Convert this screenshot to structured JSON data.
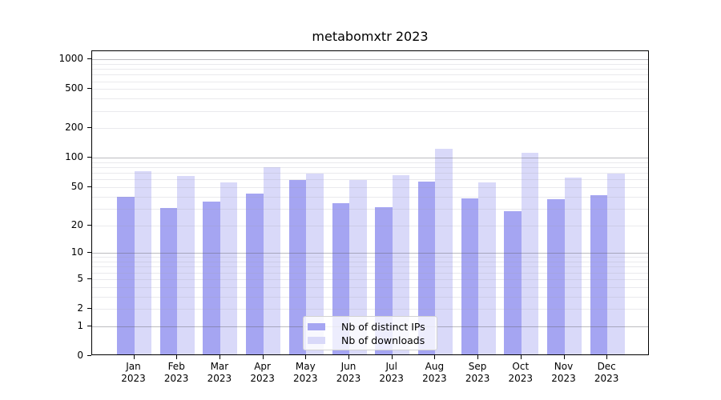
{
  "chart_data": {
    "type": "bar",
    "title": "metabomxtr 2023",
    "categories": [
      "Jan 2023",
      "Feb 2023",
      "Mar 2023",
      "Apr 2023",
      "May 2023",
      "Jun 2023",
      "Jul 2023",
      "Aug 2023",
      "Sep 2023",
      "Oct 2023",
      "Nov 2023",
      "Dec 2023"
    ],
    "series": [
      {
        "name": "Nb of distinct IPs",
        "color": "#a5a5f2",
        "values": [
          38,
          29,
          34,
          41,
          57,
          33,
          30,
          55,
          37,
          27,
          36,
          40
        ]
      },
      {
        "name": "Nb of downloads",
        "color": "#d9d9f9",
        "values": [
          70,
          63,
          54,
          77,
          66,
          57,
          64,
          120,
          54,
          109,
          60,
          66
        ]
      }
    ],
    "y_axis": {
      "scale": "log1p",
      "ticks": [
        0,
        1,
        2,
        5,
        10,
        20,
        50,
        100,
        200,
        500,
        1000
      ],
      "ylim": [
        0,
        1200
      ]
    },
    "xlabel": "",
    "ylabel": "",
    "grid": {
      "enabled": true,
      "major_color": "#bcbcc0",
      "minor_color": "#eaeaec"
    },
    "legend_position": "lower center"
  }
}
